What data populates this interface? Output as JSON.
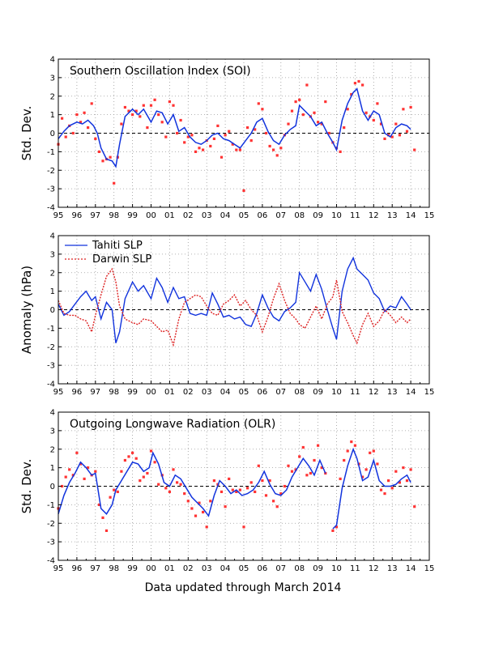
{
  "footer": "Data updated through March 2014",
  "colors": {
    "obs": "#ff3333",
    "smooth": "#1133dd",
    "tahiti": "#1133dd",
    "darwin": "#dd2222"
  },
  "x_ticks": [
    "95",
    "96",
    "97",
    "98",
    "99",
    "00",
    "01",
    "02",
    "03",
    "04",
    "05",
    "06",
    "07",
    "08",
    "09",
    "10",
    "11",
    "12",
    "13",
    "14",
    "15"
  ],
  "y_ticks": [
    "-4",
    "-3",
    "-2",
    "-1",
    "0",
    "1",
    "2",
    "3",
    "4"
  ],
  "chart_data": [
    {
      "type": "line",
      "title": "Southern Oscillation Index (SOI)",
      "ylabel": "Std. Dev.",
      "xlim": [
        1995,
        2015
      ],
      "ylim": [
        -4,
        4
      ],
      "grid": true,
      "series": [
        {
          "role": "smoothed",
          "x": [
            1995.0,
            1995.3,
            1995.6,
            1996.0,
            1996.3,
            1996.6,
            1996.9,
            1997.1,
            1997.3,
            1997.6,
            1997.9,
            1998.1,
            1998.3,
            1998.6,
            1999.0,
            1999.3,
            1999.6,
            2000.0,
            2000.3,
            2000.6,
            2000.9,
            2001.2,
            2001.5,
            2001.8,
            2002.1,
            2002.4,
            2002.7,
            2003.0,
            2003.3,
            2003.6,
            2003.9,
            2004.2,
            2004.5,
            2004.8,
            2005.1,
            2005.4,
            2005.7,
            2006.0,
            2006.3,
            2006.6,
            2006.9,
            2007.2,
            2007.5,
            2007.8,
            2008.0,
            2008.3,
            2008.6,
            2008.9,
            2009.2,
            2009.5,
            2009.8,
            2010.0,
            2010.3,
            2010.6,
            2010.9,
            2011.1,
            2011.4,
            2011.7,
            2012.0,
            2012.3,
            2012.6,
            2012.9,
            2013.2,
            2013.5,
            2013.8,
            2014.0
          ],
          "y": [
            -0.3,
            0.1,
            0.4,
            0.6,
            0.5,
            0.7,
            0.4,
            0.0,
            -0.8,
            -1.4,
            -1.5,
            -1.8,
            -0.6,
            0.9,
            1.3,
            1.0,
            1.3,
            0.6,
            1.2,
            1.1,
            0.5,
            1.0,
            0.1,
            0.3,
            -0.2,
            -0.5,
            -0.6,
            -0.4,
            -0.1,
            0.0,
            -0.3,
            -0.4,
            -0.6,
            -0.8,
            -0.4,
            0.0,
            0.6,
            0.8,
            0.1,
            -0.4,
            -0.6,
            -0.1,
            0.2,
            0.4,
            1.5,
            1.2,
            0.9,
            0.4,
            0.6,
            0.0,
            -0.5,
            -0.9,
            0.7,
            1.6,
            2.2,
            2.4,
            1.2,
            0.7,
            1.2,
            1.0,
            0.0,
            -0.2,
            0.3,
            0.5,
            0.4,
            0.2
          ]
        },
        {
          "role": "monthly",
          "x": [
            1995.0,
            1995.2,
            1995.4,
            1995.6,
            1995.8,
            1996.0,
            1996.2,
            1996.4,
            1996.6,
            1996.8,
            1997.0,
            1997.2,
            1997.4,
            1997.6,
            1997.8,
            1998.0,
            1998.2,
            1998.4,
            1998.6,
            1998.8,
            1999.0,
            1999.2,
            1999.4,
            1999.6,
            1999.8,
            2000.0,
            2000.2,
            2000.4,
            2000.6,
            2000.8,
            2001.0,
            2001.2,
            2001.4,
            2001.6,
            2001.8,
            2002.0,
            2002.2,
            2002.4,
            2002.6,
            2002.8,
            2003.0,
            2003.2,
            2003.4,
            2003.6,
            2003.8,
            2004.0,
            2004.2,
            2004.4,
            2004.6,
            2004.8,
            2005.0,
            2005.2,
            2005.4,
            2005.6,
            2005.8,
            2006.0,
            2006.2,
            2006.4,
            2006.6,
            2006.8,
            2007.0,
            2007.2,
            2007.4,
            2007.6,
            2007.8,
            2008.0,
            2008.2,
            2008.4,
            2008.6,
            2008.8,
            2009.0,
            2009.2,
            2009.4,
            2009.6,
            2009.8,
            2010.0,
            2010.2,
            2010.4,
            2010.6,
            2010.8,
            2011.0,
            2011.2,
            2011.4,
            2011.6,
            2011.8,
            2012.0,
            2012.2,
            2012.4,
            2012.6,
            2012.8,
            2013.0,
            2013.2,
            2013.4,
            2013.6,
            2013.8,
            2014.0,
            2014.2
          ],
          "y": [
            -0.6,
            0.8,
            -0.2,
            0.4,
            0.0,
            1.0,
            0.6,
            1.1,
            0.3,
            1.6,
            -0.3,
            -1.0,
            -1.5,
            -1.4,
            -1.3,
            -2.7,
            -1.3,
            0.5,
            1.4,
            1.2,
            1.0,
            1.2,
            0.9,
            1.5,
            0.3,
            1.5,
            1.8,
            1.0,
            0.6,
            -0.2,
            1.7,
            1.5,
            0.0,
            0.7,
            -0.5,
            -0.2,
            -0.1,
            -1.0,
            -0.8,
            -0.9,
            -0.4,
            -0.7,
            -0.3,
            0.4,
            -1.3,
            -0.1,
            0.1,
            -0.6,
            -0.9,
            -0.9,
            -3.1,
            0.3,
            -0.4,
            0.2,
            1.6,
            1.3,
            0.0,
            -0.7,
            -0.9,
            -1.2,
            -0.8,
            -0.1,
            0.5,
            1.2,
            1.7,
            1.8,
            1.0,
            2.6,
            0.9,
            1.1,
            0.6,
            0.5,
            1.7,
            0.0,
            -0.5,
            -0.8,
            -1.0,
            0.3,
            1.3,
            2.1,
            2.7,
            2.8,
            2.6,
            1.1,
            0.9,
            0.7,
            1.6,
            0.5,
            -0.3,
            -0.1,
            -0.2,
            0.5,
            -0.1,
            1.3,
            0.1,
            1.4,
            -0.9
          ]
        }
      ]
    },
    {
      "type": "line",
      "title": "",
      "ylabel": "Anomaly (hPa)",
      "xlim": [
        1995,
        2015
      ],
      "ylim": [
        -4,
        4
      ],
      "grid": true,
      "legend": "top-left",
      "series": [
        {
          "name": "Tahiti SLP",
          "x": [
            1995.0,
            1995.3,
            1995.6,
            1995.9,
            1996.2,
            1996.5,
            1996.8,
            1997.0,
            1997.3,
            1997.6,
            1997.9,
            1998.1,
            1998.3,
            1998.6,
            1999.0,
            1999.3,
            1999.6,
            2000.0,
            2000.3,
            2000.6,
            2000.9,
            2001.2,
            2001.5,
            2001.8,
            2002.1,
            2002.4,
            2002.7,
            2003.0,
            2003.3,
            2003.6,
            2003.9,
            2004.2,
            2004.5,
            2004.8,
            2005.1,
            2005.4,
            2005.7,
            2006.0,
            2006.3,
            2006.6,
            2006.9,
            2007.2,
            2007.5,
            2007.8,
            2008.0,
            2008.3,
            2008.6,
            2008.9,
            2009.2,
            2009.5,
            2009.8,
            2010.0,
            2010.3,
            2010.6,
            2010.9,
            2011.1,
            2011.4,
            2011.7,
            2012.0,
            2012.3,
            2012.6,
            2012.9,
            2013.2,
            2013.5,
            2013.8,
            2014.0
          ],
          "y": [
            0.3,
            -0.3,
            -0.1,
            0.3,
            0.7,
            1.0,
            0.5,
            0.7,
            -0.5,
            0.4,
            0.0,
            -1.8,
            -1.2,
            0.6,
            1.5,
            1.0,
            1.3,
            0.6,
            1.7,
            1.2,
            0.4,
            1.2,
            0.6,
            0.7,
            -0.2,
            -0.3,
            -0.2,
            -0.3,
            0.9,
            0.3,
            -0.4,
            -0.3,
            -0.5,
            -0.4,
            -0.8,
            -0.9,
            -0.2,
            0.8,
            0.1,
            -0.4,
            -0.6,
            -0.1,
            0.1,
            0.4,
            2.0,
            1.5,
            1.0,
            1.9,
            1.1,
            0.0,
            -1.0,
            -1.6,
            1.0,
            2.2,
            2.8,
            2.2,
            1.9,
            1.6,
            0.9,
            0.6,
            -0.1,
            0.2,
            0.1,
            0.7,
            0.3,
            0.0
          ]
        },
        {
          "name": "Darwin SLP",
          "x": [
            1995.0,
            1995.3,
            1995.6,
            1995.9,
            1996.2,
            1996.5,
            1996.8,
            1997.0,
            1997.3,
            1997.6,
            1997.9,
            1998.1,
            1998.3,
            1998.6,
            1999.0,
            1999.3,
            1999.6,
            2000.0,
            2000.3,
            2000.6,
            2000.9,
            2001.2,
            2001.5,
            2001.8,
            2002.1,
            2002.4,
            2002.7,
            2003.0,
            2003.3,
            2003.6,
            2003.9,
            2004.2,
            2004.5,
            2004.8,
            2005.1,
            2005.4,
            2005.7,
            2006.0,
            2006.3,
            2006.6,
            2006.9,
            2007.2,
            2007.5,
            2007.8,
            2008.0,
            2008.3,
            2008.6,
            2008.9,
            2009.2,
            2009.5,
            2009.8,
            2010.0,
            2010.3,
            2010.6,
            2010.9,
            2011.1,
            2011.4,
            2011.7,
            2012.0,
            2012.3,
            2012.6,
            2012.9,
            2013.2,
            2013.5,
            2013.8,
            2014.0
          ],
          "y": [
            0.5,
            -0.2,
            -0.3,
            -0.3,
            -0.5,
            -0.6,
            -1.2,
            -0.3,
            0.8,
            1.8,
            2.2,
            1.5,
            0.2,
            -0.5,
            -0.7,
            -0.8,
            -0.5,
            -0.6,
            -0.9,
            -1.2,
            -1.1,
            -1.9,
            -0.5,
            0.4,
            0.6,
            0.8,
            0.7,
            0.2,
            -0.2,
            -0.3,
            0.3,
            0.5,
            0.8,
            0.2,
            0.5,
            0.0,
            -0.3,
            -1.2,
            -0.4,
            0.6,
            1.4,
            0.5,
            -0.2,
            -0.5,
            -0.8,
            -1.0,
            -0.4,
            0.2,
            -0.5,
            0.3,
            0.7,
            1.6,
            -0.1,
            -0.7,
            -1.4,
            -1.8,
            -0.8,
            -0.2,
            -0.9,
            -0.6,
            0.0,
            -0.3,
            -0.7,
            -0.4,
            -0.7,
            -0.5
          ]
        }
      ]
    },
    {
      "type": "line",
      "title": "Outgoing Longwave Radiation (OLR)",
      "ylabel": "Std. Dev.",
      "xlim": [
        1995,
        2015
      ],
      "ylim": [
        -4,
        4
      ],
      "grid": true,
      "series": [
        {
          "role": "smoothed",
          "segments": [
            {
              "x": [
                1995.0,
                1995.3,
                1995.6,
                1995.9,
                1996.2,
                1996.5,
                1996.8,
                1997.0,
                1997.3,
                1997.6,
                1997.9,
                1998.1,
                1998.4,
                1998.7,
                1999.0,
                1999.3,
                1999.6,
                1999.9,
                2000.1,
                2000.4,
                2000.7,
                2001.0,
                2001.3,
                2001.6,
                2001.9,
                2002.2,
                2002.5,
                2002.8,
                2003.1,
                2003.4,
                2003.7,
                2004.0,
                2004.3,
                2004.6,
                2004.9,
                2005.2,
                2005.5,
                2005.8,
                2006.1,
                2006.4,
                2006.7,
                2007.0,
                2007.3,
                2007.6,
                2007.9,
                2008.2,
                2008.5,
                2008.8,
                2009.1,
                2009.4
              ],
              "y": [
                -1.5,
                -0.5,
                0.2,
                0.7,
                1.3,
                1.0,
                0.6,
                0.7,
                -1.2,
                -1.5,
                -1.0,
                -0.2,
                0.3,
                0.8,
                1.3,
                1.2,
                0.8,
                1.0,
                1.8,
                1.2,
                0.2,
                0.0,
                0.6,
                0.4,
                -0.1,
                -0.6,
                -0.9,
                -1.2,
                -1.6,
                -0.5,
                0.3,
                0.0,
                -0.4,
                -0.2,
                -0.5,
                -0.4,
                -0.2,
                0.2,
                0.8,
                0.1,
                -0.4,
                -0.5,
                -0.2,
                0.5,
                1.0,
                1.5,
                1.1,
                0.6,
                1.4,
                0.7
              ]
            },
            {
              "x": [
                2009.8,
                2010.0,
                2010.3,
                2010.6,
                2010.9,
                2011.1,
                2011.4,
                2011.7,
                2012.0,
                2012.3,
                2012.6,
                2012.9,
                2013.2,
                2013.5,
                2013.8,
                2014.0
              ],
              "y": [
                -2.3,
                -2.1,
                -0.1,
                1.1,
                2.0,
                1.5,
                0.3,
                0.5,
                1.4,
                0.3,
                0.0,
                0.0,
                0.1,
                0.4,
                0.6,
                0.2
              ]
            }
          ]
        },
        {
          "role": "monthly",
          "x": [
            1995.0,
            1995.2,
            1995.4,
            1995.6,
            1995.8,
            1996.0,
            1996.2,
            1996.4,
            1996.6,
            1996.8,
            1997.0,
            1997.2,
            1997.4,
            1997.6,
            1997.8,
            1998.0,
            1998.2,
            1998.4,
            1998.6,
            1998.8,
            1999.0,
            1999.2,
            1999.4,
            1999.6,
            1999.8,
            2000.0,
            2000.2,
            2000.4,
            2000.6,
            2000.8,
            2001.0,
            2001.2,
            2001.4,
            2001.6,
            2001.8,
            2002.0,
            2002.2,
            2002.4,
            2002.6,
            2002.8,
            2003.0,
            2003.2,
            2003.4,
            2003.6,
            2003.8,
            2004.0,
            2004.2,
            2004.4,
            2004.6,
            2004.8,
            2005.0,
            2005.2,
            2005.4,
            2005.6,
            2005.8,
            2006.0,
            2006.2,
            2006.4,
            2006.6,
            2006.8,
            2007.0,
            2007.2,
            2007.4,
            2007.6,
            2007.8,
            2008.0,
            2008.2,
            2008.4,
            2008.6,
            2008.8,
            2009.0,
            2009.2,
            2009.4,
            2009.8,
            2010.0,
            2010.2,
            2010.4,
            2010.6,
            2010.8,
            2011.0,
            2011.2,
            2011.4,
            2011.6,
            2011.8,
            2012.0,
            2012.2,
            2012.4,
            2012.6,
            2012.8,
            2013.0,
            2013.2,
            2013.4,
            2013.6,
            2013.8,
            2014.0,
            2014.2
          ],
          "y": [
            -1.2,
            0.0,
            0.5,
            0.9,
            0.6,
            1.8,
            1.2,
            0.4,
            1.0,
            0.6,
            0.8,
            -1.0,
            -1.7,
            -2.4,
            -0.6,
            -0.2,
            -0.3,
            0.8,
            1.4,
            1.6,
            1.8,
            1.5,
            0.3,
            0.5,
            0.7,
            1.9,
            1.3,
            0.1,
            0.6,
            -0.1,
            -0.3,
            0.9,
            0.2,
            0.1,
            -0.4,
            -0.8,
            -1.2,
            -1.6,
            -0.9,
            -1.4,
            -2.2,
            -0.8,
            0.3,
            0.1,
            -0.3,
            -1.1,
            0.4,
            -0.2,
            -0.3,
            -0.2,
            -2.2,
            -0.1,
            0.2,
            -0.3,
            1.1,
            0.3,
            -0.5,
            0.3,
            -0.8,
            -1.1,
            -0.4,
            0.0,
            1.1,
            0.8,
            0.9,
            1.6,
            2.1,
            0.6,
            0.7,
            1.4,
            2.2,
            1.0,
            0.7,
            -2.4,
            -2.2,
            0.4,
            1.4,
            1.9,
            2.4,
            2.2,
            1.2,
            0.5,
            0.9,
            1.8,
            1.9,
            1.2,
            -0.2,
            -0.4,
            0.3,
            -0.1,
            0.8,
            0.2,
            1.0,
            0.3,
            0.9,
            -1.1
          ]
        }
      ]
    }
  ]
}
